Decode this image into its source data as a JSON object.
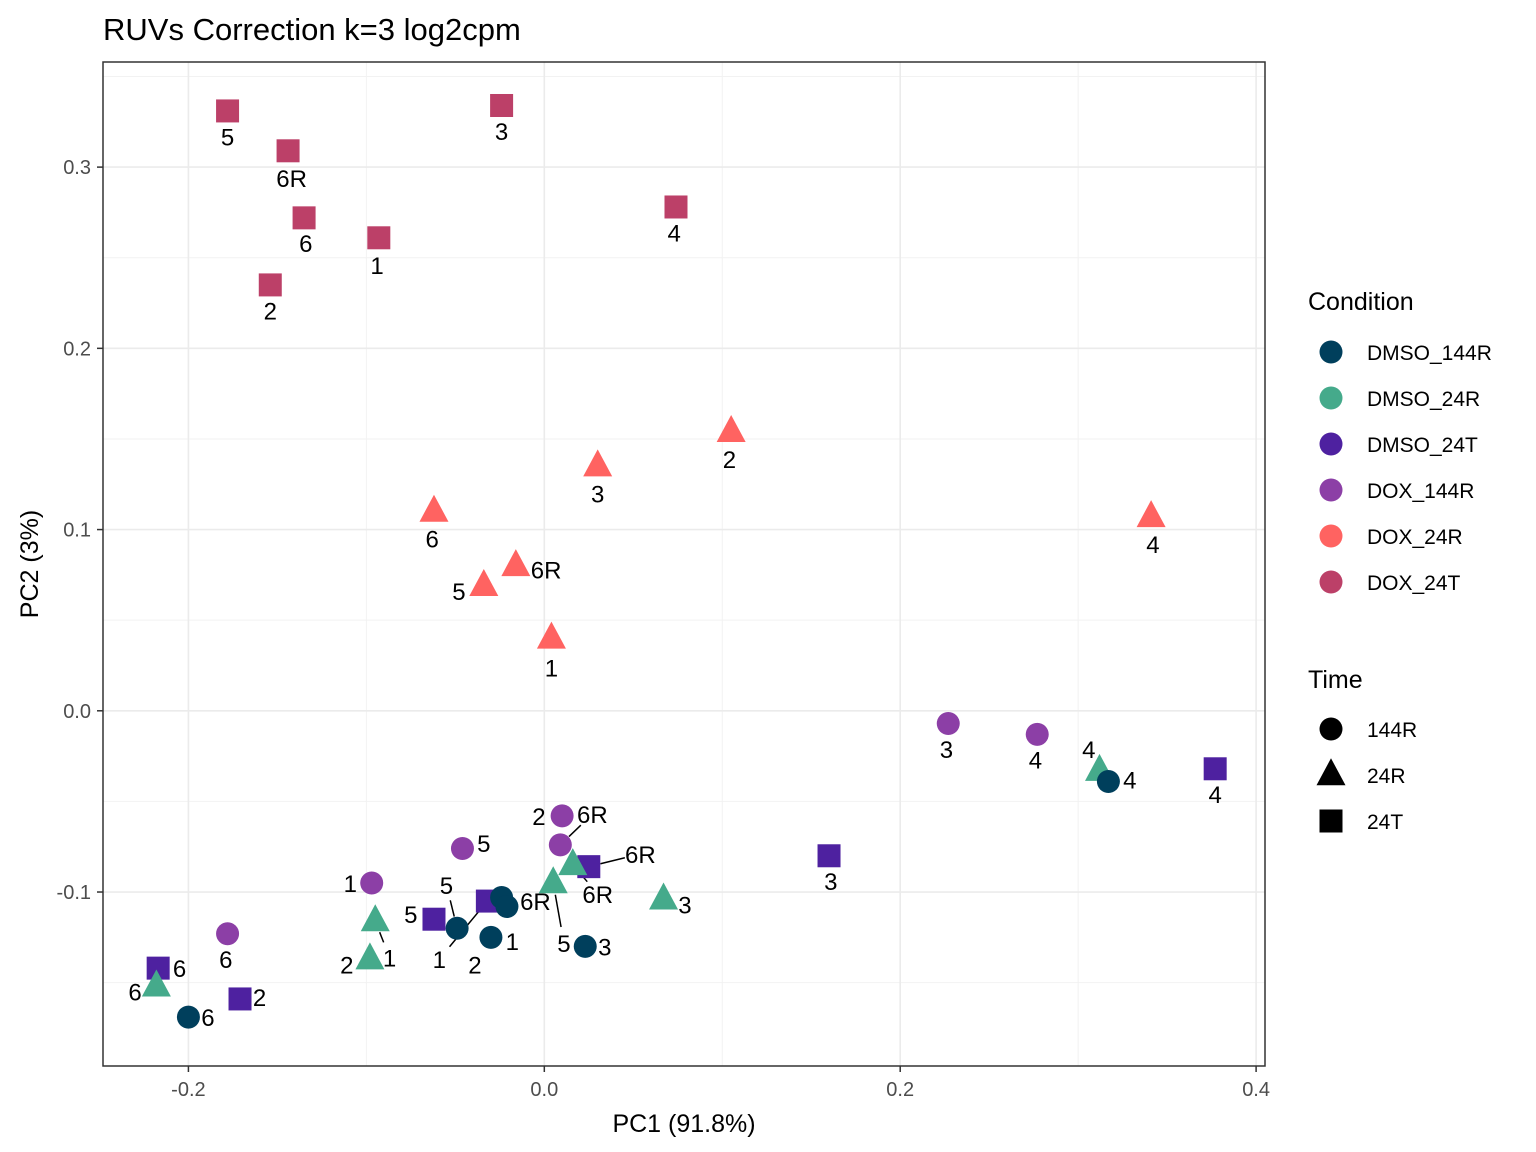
{
  "chart_data": {
    "type": "scatter",
    "title": "RUVs Correction k=3 log2cpm",
    "xlabel": "PC1 (91.8%)",
    "ylabel": "PC2 (3%)",
    "xlim": [
      -0.248,
      0.405
    ],
    "ylim": [
      -0.196,
      0.358
    ],
    "x_ticks": [
      {
        "value": -0.2,
        "label": "-0.2"
      },
      {
        "value": 0.0,
        "label": "0.0"
      },
      {
        "value": 0.2,
        "label": "0.2"
      },
      {
        "value": 0.4,
        "label": "0.4"
      }
    ],
    "y_ticks": [
      {
        "value": -0.1,
        "label": "-0.1"
      },
      {
        "value": 0.0,
        "label": "0.0"
      },
      {
        "value": 0.1,
        "label": "0.1"
      },
      {
        "value": 0.2,
        "label": "0.2"
      },
      {
        "value": 0.3,
        "label": "0.3"
      }
    ],
    "grid": true,
    "legend": {
      "position": "right",
      "condition_title": "Condition",
      "conditions": [
        {
          "name": "DMSO_144R",
          "color": "#003f5c"
        },
        {
          "name": "DMSO_24R",
          "color": "#45aa8b"
        },
        {
          "name": "DMSO_24T",
          "color": "#4e21a0"
        },
        {
          "name": "DOX_144R",
          "color": "#8c3fa6"
        },
        {
          "name": "DOX_24R",
          "color": "#ff6361"
        },
        {
          "name": "DOX_24T",
          "color": "#bc4068"
        }
      ],
      "time_title": "Time",
      "times": [
        {
          "name": "144R",
          "shape": "circle"
        },
        {
          "name": "24R",
          "shape": "triangle"
        },
        {
          "name": "24T",
          "shape": "square"
        }
      ]
    },
    "points": [
      {
        "condition": "DOX_24T",
        "time": "24T",
        "x": -0.178,
        "y": 0.331,
        "label": "5",
        "lx": -0.178,
        "ly": 0.317
      },
      {
        "condition": "DOX_24T",
        "time": "24T",
        "x": -0.144,
        "y": 0.309,
        "label": "6R",
        "lx": -0.142,
        "ly": 0.294
      },
      {
        "condition": "DOX_24T",
        "time": "24T",
        "x": -0.135,
        "y": 0.272,
        "label": "6",
        "lx": -0.134,
        "ly": 0.258
      },
      {
        "condition": "DOX_24T",
        "time": "24T",
        "x": -0.093,
        "y": 0.261,
        "label": "1",
        "lx": -0.094,
        "ly": 0.246
      },
      {
        "condition": "DOX_24T",
        "time": "24T",
        "x": -0.154,
        "y": 0.235,
        "label": "2",
        "lx": -0.154,
        "ly": 0.221
      },
      {
        "condition": "DOX_24T",
        "time": "24T",
        "x": -0.024,
        "y": 0.334,
        "label": "3",
        "lx": -0.024,
        "ly": 0.32
      },
      {
        "condition": "DOX_24T",
        "time": "24T",
        "x": 0.074,
        "y": 0.278,
        "label": "4",
        "lx": 0.073,
        "ly": 0.264
      },
      {
        "condition": "DOX_24R",
        "time": "24R",
        "x": 0.105,
        "y": 0.154,
        "label": "2",
        "lx": 0.104,
        "ly": 0.139
      },
      {
        "condition": "DOX_24R",
        "time": "24R",
        "x": 0.03,
        "y": 0.135,
        "label": "3",
        "lx": 0.03,
        "ly": 0.12
      },
      {
        "condition": "DOX_24R",
        "time": "24R",
        "x": -0.062,
        "y": 0.11,
        "label": "6",
        "lx": -0.063,
        "ly": 0.095
      },
      {
        "condition": "DOX_24R",
        "time": "24R",
        "x": -0.016,
        "y": 0.08,
        "label": "6R",
        "lx": 0.001,
        "ly": 0.078
      },
      {
        "condition": "DOX_24R",
        "time": "24R",
        "x": -0.034,
        "y": 0.069,
        "label": "5",
        "lx": -0.048,
        "ly": 0.066
      },
      {
        "condition": "DOX_24R",
        "time": "24R",
        "x": 0.004,
        "y": 0.04,
        "label": "1",
        "lx": 0.004,
        "ly": 0.024
      },
      {
        "condition": "DOX_24R",
        "time": "24R",
        "x": 0.341,
        "y": 0.107,
        "label": "4",
        "lx": 0.342,
        "ly": 0.092
      },
      {
        "condition": "DOX_144R",
        "time": "144R",
        "x": 0.227,
        "y": -0.007,
        "label": "3",
        "lx": 0.226,
        "ly": -0.021
      },
      {
        "condition": "DOX_144R",
        "time": "144R",
        "x": 0.277,
        "y": -0.013,
        "label": "4",
        "lx": 0.276,
        "ly": -0.027
      },
      {
        "condition": "DOX_144R",
        "time": "144R",
        "x": 0.01,
        "y": -0.058,
        "label": "2",
        "lx": -0.003,
        "ly": -0.058
      },
      {
        "condition": "DOX_144R",
        "time": "144R",
        "x": 0.009,
        "y": -0.074,
        "label": "6R",
        "lx": 0.027,
        "ly": -0.057
      },
      {
        "condition": "DOX_144R",
        "time": "144R",
        "x": -0.046,
        "y": -0.076,
        "label": "5",
        "lx": -0.034,
        "ly": -0.073
      },
      {
        "condition": "DOX_144R",
        "time": "144R",
        "x": -0.097,
        "y": -0.095,
        "label": "1",
        "lx": -0.109,
        "ly": -0.095
      },
      {
        "condition": "DOX_144R",
        "time": "144R",
        "x": -0.178,
        "y": -0.123,
        "label": "6",
        "lx": -0.179,
        "ly": -0.137
      },
      {
        "condition": "DMSO_24T",
        "time": "24T",
        "x": 0.16,
        "y": -0.08,
        "label": "3",
        "lx": 0.161,
        "ly": -0.094
      },
      {
        "condition": "DMSO_24T",
        "time": "24T",
        "x": 0.377,
        "y": -0.032,
        "label": "4",
        "lx": 0.377,
        "ly": -0.046
      },
      {
        "condition": "DMSO_24T",
        "time": "24T",
        "x": 0.025,
        "y": -0.086,
        "label": "6R",
        "lx": 0.054,
        "ly": -0.079
      },
      {
        "condition": "DMSO_24T",
        "time": "24T",
        "x": -0.062,
        "y": -0.115,
        "label": "5",
        "lx": -0.075,
        "ly": -0.112
      },
      {
        "condition": "DMSO_24T",
        "time": "24T",
        "x": -0.032,
        "y": -0.105,
        "label": "1",
        "lx": -0.059,
        "ly": -0.137
      },
      {
        "condition": "DMSO_24T",
        "time": "24T",
        "x": -0.217,
        "y": -0.142,
        "label": "6",
        "lx": -0.205,
        "ly": -0.142
      },
      {
        "condition": "DMSO_24T",
        "time": "24T",
        "x": -0.171,
        "y": -0.159,
        "label": "2",
        "lx": -0.16,
        "ly": -0.158
      },
      {
        "condition": "DMSO_24R",
        "time": "24R",
        "x": 0.067,
        "y": -0.104,
        "label": "3",
        "lx": 0.079,
        "ly": -0.107
      },
      {
        "condition": "DMSO_24R",
        "time": "24R",
        "x": 0.312,
        "y": -0.033,
        "label": "4",
        "lx": 0.306,
        "ly": -0.021
      },
      {
        "condition": "DMSO_24R",
        "time": "24R",
        "x": 0.016,
        "y": -0.085,
        "label": "6R",
        "lx": 0.03,
        "ly": -0.101
      },
      {
        "condition": "DMSO_24R",
        "time": "24R",
        "x": 0.005,
        "y": -0.095,
        "label": "5",
        "lx": 0.011,
        "ly": -0.128
      },
      {
        "condition": "DMSO_24R",
        "time": "24R",
        "x": -0.095,
        "y": -0.116,
        "label": "1",
        "lx": -0.087,
        "ly": -0.136
      },
      {
        "condition": "DMSO_24R",
        "time": "24R",
        "x": -0.098,
        "y": -0.137,
        "label": "2",
        "lx": -0.111,
        "ly": -0.14
      },
      {
        "condition": "DMSO_24R",
        "time": "24R",
        "x": -0.218,
        "y": -0.152,
        "label": "6",
        "lx": -0.23,
        "ly": -0.155
      },
      {
        "condition": "DMSO_144R",
        "time": "144R",
        "x": 0.317,
        "y": -0.039,
        "label": "4",
        "lx": 0.329,
        "ly": -0.038
      },
      {
        "condition": "DMSO_144R",
        "time": "144R",
        "x": -0.024,
        "y": -0.103,
        "label": "6R",
        "lx": -0.005,
        "ly": -0.105
      },
      {
        "condition": "DMSO_144R",
        "time": "144R",
        "x": -0.021,
        "y": -0.108,
        "label": "1",
        "lx": -0.018,
        "ly": -0.127
      },
      {
        "condition": "DMSO_144R",
        "time": "144R",
        "x": -0.049,
        "y": -0.12,
        "label": "5",
        "lx": -0.055,
        "ly": -0.096
      },
      {
        "condition": "DMSO_144R",
        "time": "144R",
        "x": -0.03,
        "y": -0.125,
        "label": "2",
        "lx": -0.039,
        "ly": -0.14
      },
      {
        "condition": "DMSO_144R",
        "time": "144R",
        "x": 0.023,
        "y": -0.13,
        "label": "3",
        "lx": 0.034,
        "ly": -0.13
      },
      {
        "condition": "DMSO_144R",
        "time": "144R",
        "x": -0.2,
        "y": -0.169,
        "label": "6",
        "lx": -0.189,
        "ly": -0.169
      }
    ]
  }
}
